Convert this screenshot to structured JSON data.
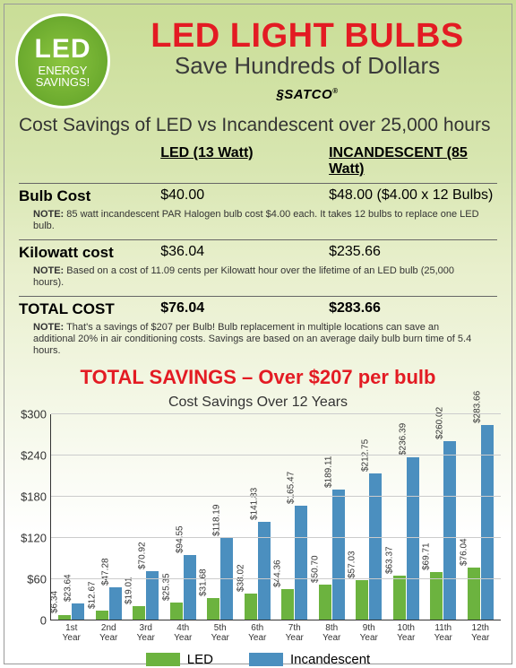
{
  "badge": {
    "line1": "LED",
    "line2": "ENERGY",
    "line3": "SAVINGS!"
  },
  "header": {
    "title": "LED LIGHT BULBS",
    "subtitle": "Save Hundreds of Dollars",
    "brand": "SATCO"
  },
  "section_title": "Cost Savings of LED vs Incandescent over 25,000 hours",
  "table": {
    "col1": "LED (13 Watt)",
    "col2": "INCANDESCENT (85 Watt)",
    "rows": [
      {
        "label": "Bulb Cost",
        "v1": "$40.00",
        "v2": "$48.00  ($4.00 x 12 Bulbs)",
        "note": "NOTE: 85 watt incandescent PAR Halogen bulb cost $4.00 each. It takes 12 bulbs to replace one LED bulb."
      },
      {
        "label": "Kilowatt cost",
        "v1": "$36.04",
        "v2": "$235.66",
        "note": "NOTE: Based on a cost of 11.09 cents per Kilowatt hour over the lifetime of an LED bulb (25,000 hours)."
      },
      {
        "label": "TOTAL COST",
        "v1": "$76.04",
        "v2": "$283.66",
        "note": "NOTE: That's a savings of $207 per Bulb! Bulb replacement in multiple locations can save an additional 20% in air conditioning costs. Savings are based on an average daily bulb burn time of 5.4 hours.",
        "total": true
      }
    ]
  },
  "savings_text": "TOTAL SAVINGS – Over $207 per bulb",
  "chart": {
    "title": "Cost Savings Over 12 Years",
    "type": "bar",
    "ylim": [
      0,
      300
    ],
    "ytick_step": 60,
    "y_ticks": [
      "0",
      "$60",
      "$120",
      "$180",
      "$240",
      "$300"
    ],
    "categories": [
      "1st Year",
      "2nd Year",
      "3rd Year",
      "4th Year",
      "5th Year",
      "6th Year",
      "7th Year",
      "8th Year",
      "9th Year",
      "10th Year",
      "11th Year",
      "12th Year"
    ],
    "series": [
      {
        "name": "LED",
        "color": "#6cb33f",
        "values": [
          6.34,
          12.67,
          19.01,
          25.35,
          31.68,
          38.02,
          44.36,
          50.7,
          57.03,
          63.37,
          69.71,
          76.04
        ],
        "labels": [
          "$6.34",
          "$12.67",
          "$19.01",
          "$25.35",
          "$31.68",
          "$38.02",
          "$44.36",
          "$50.70",
          "$57.03",
          "$63.37",
          "$69.71",
          "$76.04"
        ]
      },
      {
        "name": "Incandescent",
        "color": "#4b8fbf",
        "values": [
          23.64,
          47.28,
          70.92,
          94.55,
          118.19,
          141.83,
          165.47,
          189.11,
          212.75,
          236.39,
          260.02,
          283.66
        ],
        "labels": [
          "$23.64",
          "$47.28",
          "$70.92",
          "$94.55",
          "$118.19",
          "$141.83",
          "$165.47",
          "$189.11",
          "$212.75",
          "$236.39",
          "$260.02",
          "$283.66"
        ]
      }
    ],
    "legend": [
      "LED",
      "Incandescent"
    ],
    "background_color": "#ffffff",
    "grid_color": "#cccccc"
  }
}
